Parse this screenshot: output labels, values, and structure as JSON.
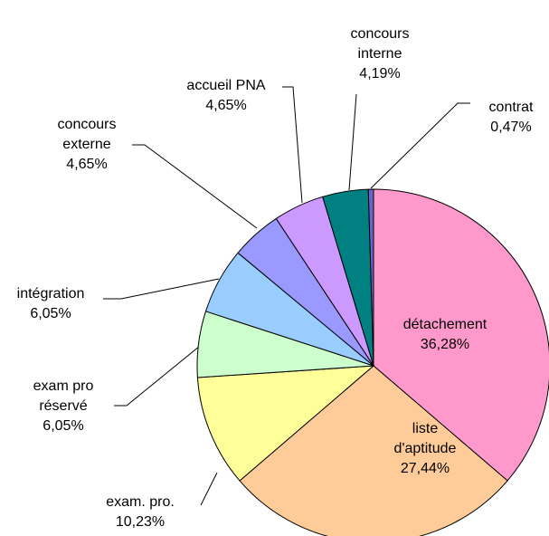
{
  "chart_data": {
    "type": "pie",
    "categories": [
      "détachement",
      "liste\nd'aptitude",
      "exam. pro.",
      "exam pro\nréservé",
      "intégration",
      "concours\nexterne",
      "accueil PNA",
      "concours\ninterne",
      "contrat"
    ],
    "values": [
      36.28,
      27.44,
      10.23,
      6.05,
      6.05,
      4.65,
      4.65,
      4.19,
      0.47
    ],
    "value_labels": [
      "36,28%",
      "27,44%",
      "10,23%",
      "6,05%",
      "6,05%",
      "4,65%",
      "4,65%",
      "4,19%",
      "0,47%"
    ],
    "colors": [
      "#FF99CC",
      "#FFCC99",
      "#FFFF99",
      "#CCFFCC",
      "#99CCFF",
      "#9999FF",
      "#CC99FF",
      "#008080",
      "#6666CC"
    ]
  }
}
